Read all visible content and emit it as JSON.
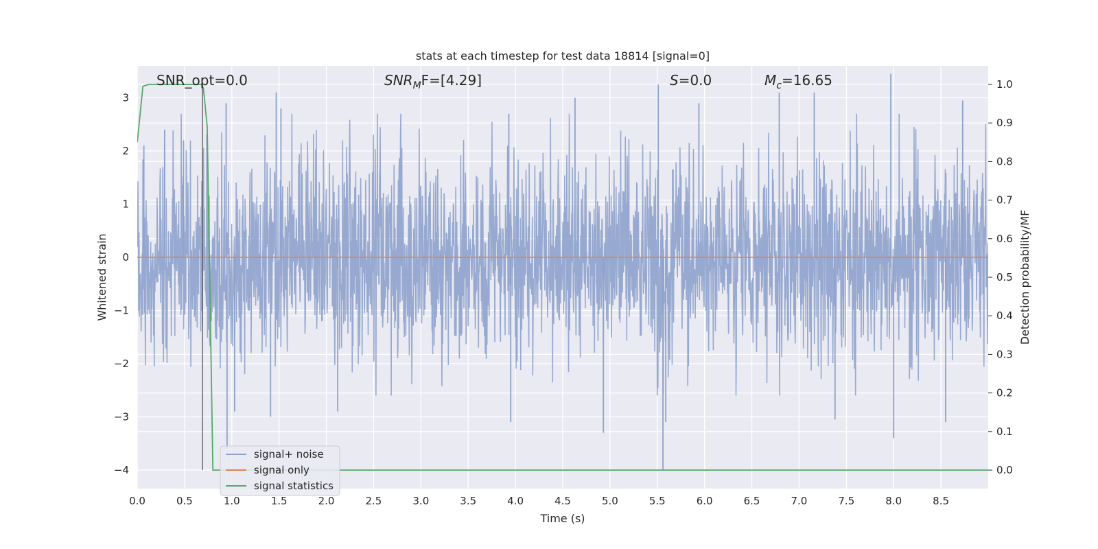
{
  "chart_data": {
    "type": "line",
    "title": "stats at each timestep for test data 18814 [signal=0]",
    "xlabel": "Time (s)",
    "ylabel": "Whitened strain",
    "y2label": "Detection probability/MF",
    "xlim": [
      0.0,
      9.0
    ],
    "ylim": [
      -4.35,
      3.6
    ],
    "y2lim": [
      -0.048,
      1.048
    ],
    "xticks": [
      "0.0",
      "0.5",
      "1.0",
      "1.5",
      "2.0",
      "2.5",
      "3.0",
      "3.5",
      "4.0",
      "4.5",
      "5.0",
      "5.5",
      "6.0",
      "6.5",
      "7.0",
      "7.5",
      "8.0",
      "8.5"
    ],
    "yticks": [
      "3",
      "2",
      "1",
      "0",
      "−1",
      "−2",
      "−3",
      "−4"
    ],
    "y2ticks": [
      "1.0",
      "0.9",
      "0.8",
      "0.7",
      "0.6",
      "0.5",
      "0.4",
      "0.3",
      "0.2",
      "0.1",
      "0.0"
    ],
    "grid": true,
    "legend_position": "lower-left",
    "annotations": {
      "snr_opt": "SNR_opt=0.0",
      "snr_mf_main": "SNR",
      "snr_mf_sub": "M",
      "snr_mf_rest": "F=[4.29]",
      "s_main": "S",
      "s_rest": "=0.0",
      "mc_main": "M",
      "mc_sub": "c",
      "mc_rest": "=16.65"
    },
    "vline_x": 0.69,
    "series": [
      {
        "name": "signal+ noise",
        "color": "#8ea2cc",
        "axis": "left",
        "description_range": [
          -4.0,
          3.4
        ],
        "spikes": [
          [
            0.07,
            2.1
          ],
          [
            0.29,
            2.4
          ],
          [
            0.49,
            2.2
          ],
          [
            0.94,
            2.9
          ],
          [
            1.47,
            3.1
          ],
          [
            1.52,
            2.8
          ],
          [
            3.93,
            2.7
          ],
          [
            4.63,
            3.0
          ],
          [
            5.51,
            3.25
          ],
          [
            5.94,
            2.9
          ],
          [
            6.79,
            3.1
          ],
          [
            7.16,
            3.1
          ],
          [
            7.97,
            3.45
          ],
          [
            8.73,
            2.95
          ],
          [
            0.95,
            -3.6
          ],
          [
            1.03,
            -2.9
          ],
          [
            1.41,
            -3.0
          ],
          [
            2.12,
            -2.9
          ],
          [
            3.95,
            -3.1
          ],
          [
            4.93,
            -3.3
          ],
          [
            5.56,
            -4.0
          ],
          [
            5.59,
            -3.1
          ],
          [
            7.38,
            -3.05
          ],
          [
            8.0,
            -3.4
          ],
          [
            8.55,
            -3.1
          ]
        ]
      },
      {
        "name": "signal only",
        "color": "#dd8452",
        "axis": "left",
        "x": [
          0.0,
          9.0
        ],
        "y": [
          0.0,
          0.0
        ]
      },
      {
        "name": "signal statistics",
        "color": "#55a868",
        "axis": "right",
        "x": [
          0.0,
          0.06,
          0.12,
          0.68,
          0.7,
          0.74,
          0.8,
          9.0
        ],
        "y": [
          0.85,
          0.995,
          1.0,
          1.0,
          0.99,
          0.89,
          0.0,
          0.0
        ]
      }
    ]
  }
}
